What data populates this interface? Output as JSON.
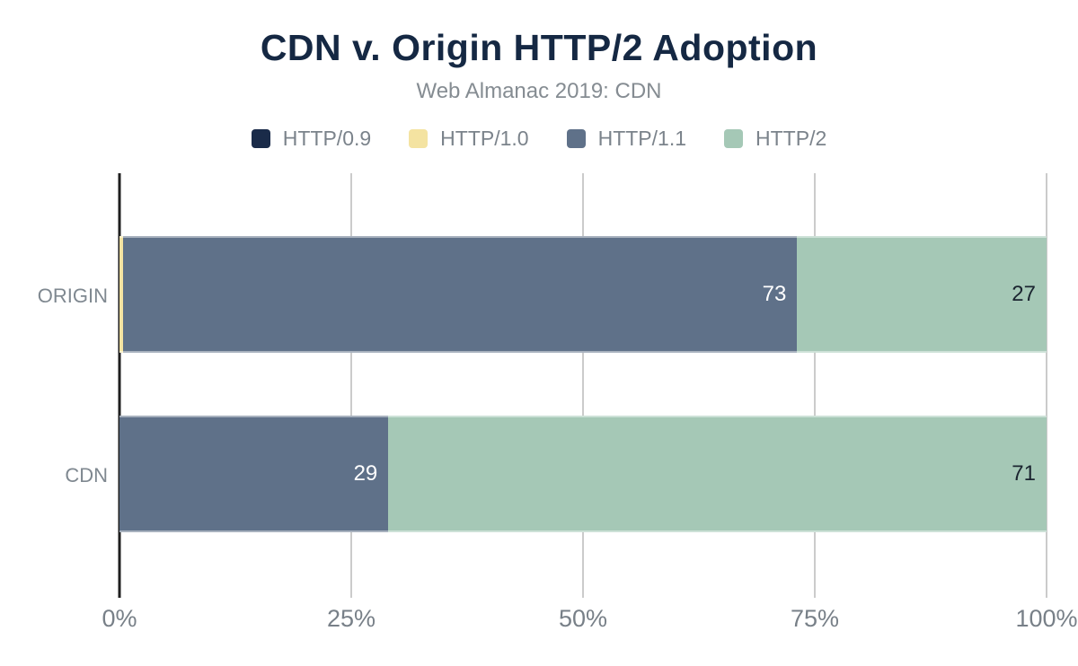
{
  "chart_data": {
    "type": "bar",
    "orientation": "horizontal",
    "stacked": true,
    "title": "CDN v. Origin HTTP/2 Adoption",
    "subtitle": "Web Almanac 2019: CDN",
    "categories": [
      "ORIGIN",
      "CDN"
    ],
    "series": [
      {
        "name": "HTTP/0.9",
        "color": "#1A2B49",
        "values": [
          0,
          0
        ],
        "labels": [
          "",
          ""
        ]
      },
      {
        "name": "HTTP/1.0",
        "color": "#F4E3A1",
        "values": [
          0.35,
          0
        ],
        "labels": [
          "",
          ""
        ]
      },
      {
        "name": "HTTP/1.1",
        "color": "#5F7189",
        "values": [
          73,
          29
        ],
        "labels": [
          "73",
          "29"
        ]
      },
      {
        "name": "HTTP/2",
        "color": "#A5C8B6",
        "values": [
          27,
          71
        ],
        "labels": [
          "27",
          "71"
        ]
      }
    ],
    "x_ticks": [
      "0%",
      "25%",
      "50%",
      "75%",
      "100%"
    ],
    "xlim": [
      0,
      100
    ],
    "grid": true,
    "legend_position": "top"
  },
  "colors": {
    "title_text": "#152843",
    "subtitle_text": "#858C92",
    "legend_text": "#7B838B",
    "category_text": "#7F8890",
    "tick_text": "#788088",
    "gridline": "#CBCBCB",
    "axis_line": "#1F1F1F",
    "label_on_dark": "#FFFFFF",
    "label_on_light": "#1B2530",
    "background": "#FFFFFF"
  }
}
